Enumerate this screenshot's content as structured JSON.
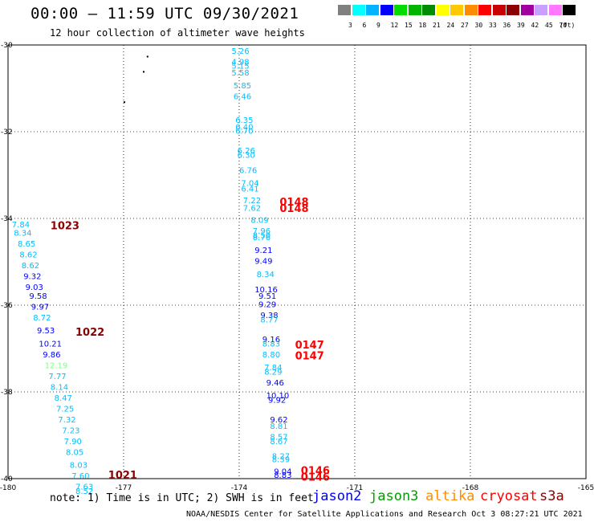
{
  "header": {
    "title": "00:00 – 11:59 UTC 09/30/2021",
    "subtitle": "12 hour collection of altimeter wave heights"
  },
  "colorbar": {
    "boxes": [
      "#808080",
      "#00ffff",
      "#00b4ff",
      "#0000ff",
      "#00dc00",
      "#00b400",
      "#008c00",
      "#ffff00",
      "#ffc800",
      "#ff8c00",
      "#ff0000",
      "#c80000",
      "#8c0000",
      "#a000a0",
      "#c8a0ff",
      "#ff78ff",
      "#000000"
    ],
    "labels": [
      "3",
      "6",
      "9",
      "12",
      "15",
      "18",
      "21",
      "24",
      "27",
      "30",
      "33",
      "36",
      "39",
      "42",
      "45",
      "70",
      "(ft)"
    ]
  },
  "axes": {
    "x_ticks": [
      "-180",
      "-177",
      "-174",
      "-171",
      "-168",
      "-165"
    ],
    "y_ticks": [
      "-30",
      "-32",
      "-34",
      "-36",
      "-38",
      "-40"
    ]
  },
  "footer": {
    "note": "note: 1) Time is in UTC; 2) SWH is in feet",
    "credit": "NOAA/NESDIS Center for Satellite Applications and Research   Oct  3 08:27:21 UTC 2021",
    "satellites": [
      {
        "name": "jason2",
        "color": "#0000ff"
      },
      {
        "name": "jason3",
        "color": "#00a000"
      },
      {
        "name": "altika",
        "color": "#ff8c00"
      },
      {
        "name": "cryosat",
        "color": "#ff0000"
      },
      {
        "name": "s3a",
        "color": "#8b0000"
      }
    ]
  },
  "observations": [
    {
      "lon": -174.2,
      "lat": -30.2,
      "v": "5.26",
      "c": "#00bfff"
    },
    {
      "lon": -174.2,
      "lat": -30.45,
      "v": "4.98",
      "c": "#00bfff"
    },
    {
      "lon": -174.2,
      "lat": -30.55,
      "v": "5.15",
      "c": "#00bfff"
    },
    {
      "lon": -174.2,
      "lat": -30.7,
      "v": "5.58",
      "c": "#00bfff"
    },
    {
      "lon": -174.15,
      "lat": -31.0,
      "v": "5.85",
      "c": "#00bfff"
    },
    {
      "lon": -174.15,
      "lat": -31.25,
      "v": "6.46",
      "c": "#00bfff"
    },
    {
      "lon": -174.1,
      "lat": -31.8,
      "v": "6.35",
      "c": "#00bfff"
    },
    {
      "lon": -174.1,
      "lat": -31.95,
      "v": "6.40",
      "c": "#00bfff"
    },
    {
      "lon": -174.1,
      "lat": -32.05,
      "v": "6.70",
      "c": "#00bfff"
    },
    {
      "lon": -174.05,
      "lat": -32.5,
      "v": "6.26",
      "c": "#00bfff"
    },
    {
      "lon": -174.05,
      "lat": -32.6,
      "v": "6.30",
      "c": "#00bfff"
    },
    {
      "lon": -174.0,
      "lat": -32.95,
      "v": "6.76",
      "c": "#00bfff"
    },
    {
      "lon": -173.95,
      "lat": -33.25,
      "v": "7.04",
      "c": "#00bfff"
    },
    {
      "lon": -173.95,
      "lat": -33.38,
      "v": "6.41",
      "c": "#00bfff"
    },
    {
      "lon": -173.9,
      "lat": -33.65,
      "v": "7.22",
      "c": "#00bfff"
    },
    {
      "lon": -173.9,
      "lat": -33.82,
      "v": "7.62",
      "c": "#00bfff"
    },
    {
      "lon": -173.7,
      "lat": -34.1,
      "v": "8.09",
      "c": "#00bfff"
    },
    {
      "lon": -173.65,
      "lat": -34.35,
      "v": "7.96",
      "c": "#00bfff"
    },
    {
      "lon": -173.65,
      "lat": -34.45,
      "v": "8.50",
      "c": "#00bfff"
    },
    {
      "lon": -173.65,
      "lat": -34.5,
      "v": "8.76",
      "c": "#00bfff"
    },
    {
      "lon": -173.6,
      "lat": -34.8,
      "v": "9.21",
      "c": "#0000ff"
    },
    {
      "lon": -173.6,
      "lat": -35.05,
      "v": "9.49",
      "c": "#0000ff"
    },
    {
      "lon": -173.55,
      "lat": -35.35,
      "v": "8.34",
      "c": "#00bfff"
    },
    {
      "lon": -173.6,
      "lat": -35.7,
      "v": "10.16",
      "c": "#0000ff"
    },
    {
      "lon": -173.5,
      "lat": -35.85,
      "v": "9.51",
      "c": "#0000ff"
    },
    {
      "lon": -173.5,
      "lat": -36.05,
      "v": "9.29",
      "c": "#0000ff"
    },
    {
      "lon": -173.45,
      "lat": -36.3,
      "v": "9.38",
      "c": "#0000ff"
    },
    {
      "lon": -173.45,
      "lat": -36.4,
      "v": "8.77",
      "c": "#00bfff"
    },
    {
      "lon": -173.4,
      "lat": -36.85,
      "v": "9.16",
      "c": "#0000ff"
    },
    {
      "lon": -173.4,
      "lat": -36.95,
      "v": "8.83",
      "c": "#00bfff"
    },
    {
      "lon": -173.4,
      "lat": -37.2,
      "v": "8.80",
      "c": "#00bfff"
    },
    {
      "lon": -173.35,
      "lat": -37.5,
      "v": "7.84",
      "c": "#00bfff"
    },
    {
      "lon": -173.35,
      "lat": -37.6,
      "v": "8.29",
      "c": "#00bfff"
    },
    {
      "lon": -173.3,
      "lat": -37.85,
      "v": "9.46",
      "c": "#0000ff"
    },
    {
      "lon": -173.3,
      "lat": -38.15,
      "v": "10.10",
      "c": "#0000ff"
    },
    {
      "lon": -173.25,
      "lat": -38.25,
      "v": "9.92",
      "c": "#0000ff"
    },
    {
      "lon": -173.2,
      "lat": -38.7,
      "v": "9.62",
      "c": "#0000ff"
    },
    {
      "lon": -173.2,
      "lat": -38.85,
      "v": "8.81",
      "c": "#00bfff"
    },
    {
      "lon": -173.2,
      "lat": -39.1,
      "v": "8.57",
      "c": "#00bfff"
    },
    {
      "lon": -173.2,
      "lat": -39.2,
      "v": "8.67",
      "c": "#00bfff"
    },
    {
      "lon": -173.15,
      "lat": -39.55,
      "v": "8.27",
      "c": "#00bfff"
    },
    {
      "lon": -173.15,
      "lat": -39.62,
      "v": "8.39",
      "c": "#00bfff"
    },
    {
      "lon": -173.1,
      "lat": -39.9,
      "v": "9.04",
      "c": "#0000ff"
    },
    {
      "lon": -173.1,
      "lat": -39.98,
      "v": "8.83",
      "c": "#0000ff"
    },
    {
      "lon": -179.9,
      "lat": -34.2,
      "v": "7.84",
      "c": "#00bfff"
    },
    {
      "lon": -179.85,
      "lat": -34.4,
      "v": "8.34",
      "c": "#00bfff"
    },
    {
      "lon": -179.75,
      "lat": -34.65,
      "v": "8.65",
      "c": "#00bfff"
    },
    {
      "lon": -179.7,
      "lat": -34.9,
      "v": "8.62",
      "c": "#00bfff"
    },
    {
      "lon": -179.65,
      "lat": -35.15,
      "v": "8.62",
      "c": "#00bfff"
    },
    {
      "lon": -179.6,
      "lat": -35.4,
      "v": "9.32",
      "c": "#0000ff"
    },
    {
      "lon": -179.55,
      "lat": -35.65,
      "v": "9.03",
      "c": "#0000ff"
    },
    {
      "lon": -179.45,
      "lat": -35.85,
      "v": "9.58",
      "c": "#0000ff"
    },
    {
      "lon": -179.4,
      "lat": -36.1,
      "v": "9.97",
      "c": "#0000ff"
    },
    {
      "lon": -179.35,
      "lat": -36.35,
      "v": "8.72",
      "c": "#00bfff"
    },
    {
      "lon": -179.25,
      "lat": -36.65,
      "v": "9.53",
      "c": "#0000ff"
    },
    {
      "lon": -179.2,
      "lat": -36.95,
      "v": "10.21",
      "c": "#0000ff"
    },
    {
      "lon": -179.1,
      "lat": -37.2,
      "v": "9.86",
      "c": "#0000ff"
    },
    {
      "lon": -179.05,
      "lat": -37.45,
      "v": "12.19",
      "c": "#80ff80"
    },
    {
      "lon": -178.95,
      "lat": -37.7,
      "v": "7.77",
      "c": "#00bfff"
    },
    {
      "lon": -178.9,
      "lat": -37.95,
      "v": "8.14",
      "c": "#00bfff"
    },
    {
      "lon": -178.8,
      "lat": -38.2,
      "v": "8.47",
      "c": "#00bfff"
    },
    {
      "lon": -178.75,
      "lat": -38.45,
      "v": "7.25",
      "c": "#00bfff"
    },
    {
      "lon": -178.7,
      "lat": -38.7,
      "v": "7.32",
      "c": "#00bfff"
    },
    {
      "lon": -178.6,
      "lat": -38.95,
      "v": "7.23",
      "c": "#00bfff"
    },
    {
      "lon": -178.55,
      "lat": -39.2,
      "v": "7.90",
      "c": "#00bfff"
    },
    {
      "lon": -178.5,
      "lat": -39.45,
      "v": "8.05",
      "c": "#00bfff"
    },
    {
      "lon": -178.4,
      "lat": -39.75,
      "v": "8.03",
      "c": "#00bfff"
    },
    {
      "lon": -178.35,
      "lat": -40.0,
      "v": "7.60",
      "c": "#00bfff"
    },
    {
      "lon": -178.25,
      "lat": -40.25,
      "v": "7.63",
      "c": "#00bfff"
    },
    {
      "lon": -178.25,
      "lat": -40.35,
      "v": "8.52",
      "c": "#00bfff"
    }
  ],
  "annotations": [
    {
      "lon": -172.95,
      "lat": -33.7,
      "v": "0148",
      "c": "#ff0000"
    },
    {
      "lon": -172.95,
      "lat": -33.85,
      "v": "0148",
      "c": "#ff0000"
    },
    {
      "lon": -178.9,
      "lat": -34.25,
      "v": "1023",
      "c": "#8b0000"
    },
    {
      "lon": -178.25,
      "lat": -36.7,
      "v": "1022",
      "c": "#8b0000"
    },
    {
      "lon": -172.55,
      "lat": -37.0,
      "v": "0147",
      "c": "#ff0000"
    },
    {
      "lon": -172.55,
      "lat": -37.25,
      "v": "0147",
      "c": "#ff0000"
    },
    {
      "lon": -177.4,
      "lat": -40.0,
      "v": "1021",
      "c": "#8b0000"
    },
    {
      "lon": -172.4,
      "lat": -39.9,
      "v": "0146",
      "c": "#ff0000"
    },
    {
      "lon": -172.4,
      "lat": -40.05,
      "v": "0146",
      "c": "#ff0000"
    }
  ],
  "land_dots": [
    {
      "lon": -176.4,
      "lat": -30.25
    },
    {
      "lon": -176.5,
      "lat": -30.6
    },
    {
      "lon": -177.0,
      "lat": -31.3
    }
  ]
}
